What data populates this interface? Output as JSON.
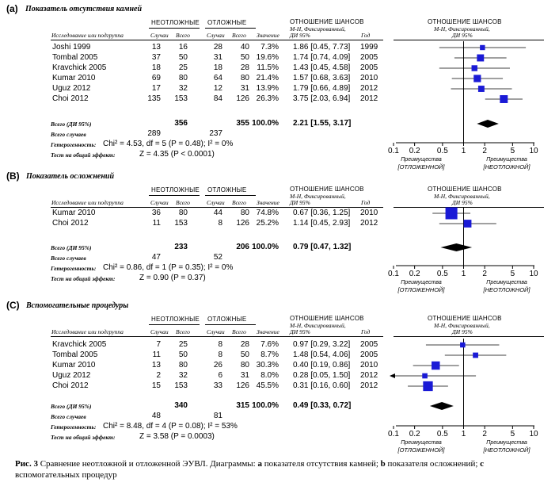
{
  "columns": {
    "study": "Исследование или подгруппа",
    "group_emerg": "НЕОТЛОЖНЫЕ",
    "group_delay": "ОТЛОЖНЫЕ",
    "events": "Случаи",
    "total": "Всего",
    "weight": "Значение",
    "or_title": "ОТНОШЕНИЕ ШАНСОВ",
    "or_sub1": "M-H, Фиксированный,",
    "or_sub2": "ДИ 95%",
    "year": "Год",
    "plot_title": "ОТНОШЕНИЕ ШАНСОВ",
    "plot_sub1": "M-H, Фиксированный,",
    "plot_sub2": "ДИ 95%",
    "favours": "Преимущества",
    "fav_left": "[ОТЛОЖЕННОЙ]",
    "fav_right": "[НЕОТЛОЖНОЙ]",
    "total_label": "Всего (ДИ 95%)",
    "events_label": "Всего случаев",
    "het_label": "Гетерогенность:",
    "test_label": "Тест на общий эффект:",
    "axis_ticks": [
      "0.1",
      "0.2",
      "0.5",
      "1",
      "2",
      "5",
      "10"
    ]
  },
  "caption": {
    "bold": "Рис. 3",
    "text1": " Сравнение неотложной и отложенной ЭУВЛ. Диаграммы: ",
    "a": "a",
    "text2": " показателя отсутствия камней; ",
    "b": "b",
    "text3": " показателя осложнений; ",
    "c": "c",
    "text4": "вспомогательных процедур"
  },
  "chart_data": [
    {
      "type": "forest",
      "panel": "(a)",
      "title": "Показатель отсутствия камней",
      "xscale": "log",
      "xlim": [
        0.1,
        10
      ],
      "rows": [
        {
          "study": "Joshi 1999",
          "e1": "13",
          "n1": "16",
          "e2": "28",
          "n2": "40",
          "weight": "7.3%",
          "or_text": "1.86 [0.45, 7.73]",
          "year": "1999",
          "or": 1.86,
          "lo": 0.45,
          "hi": 7.73,
          "w": 7.3
        },
        {
          "study": "Tombal 2005",
          "e1": "37",
          "n1": "50",
          "e2": "31",
          "n2": "50",
          "weight": "19.6%",
          "or_text": "1.74 [0.74, 4.09]",
          "year": "2005",
          "or": 1.74,
          "lo": 0.74,
          "hi": 4.09,
          "w": 19.6
        },
        {
          "study": "Kravchick 2005",
          "e1": "18",
          "n1": "25",
          "e2": "18",
          "n2": "28",
          "weight": "11.5%",
          "or_text": "1.43 [0.45, 4.58]",
          "year": "2005",
          "or": 1.43,
          "lo": 0.45,
          "hi": 4.58,
          "w": 11.5
        },
        {
          "study": "Kumar 2010",
          "e1": "69",
          "n1": "80",
          "e2": "64",
          "n2": "80",
          "weight": "21.4%",
          "or_text": "1.57 [0.68, 3.63]",
          "year": "2010",
          "or": 1.57,
          "lo": 0.68,
          "hi": 3.63,
          "w": 21.4
        },
        {
          "study": "Uguz 2012",
          "e1": "17",
          "n1": "32",
          "e2": "12",
          "n2": "31",
          "weight": "13.9%",
          "or_text": "1.79 [0.66, 4.89]",
          "year": "2012",
          "or": 1.79,
          "lo": 0.66,
          "hi": 4.89,
          "w": 13.9
        },
        {
          "study": "Choi 2012",
          "e1": "135",
          "n1": "153",
          "e2": "84",
          "n2": "126",
          "weight": "26.3%",
          "or_text": "3.75 [2.03, 6.94]",
          "year": "2012",
          "or": 3.75,
          "lo": 2.03,
          "hi": 6.94,
          "w": 26.3
        }
      ],
      "total": {
        "n1": "356",
        "n2": "355",
        "weight": "100.0%",
        "or_text": "2.21 [1.55, 3.17]",
        "or": 2.21,
        "lo": 1.55,
        "hi": 3.17
      },
      "events": {
        "e1": "289",
        "e2": "237"
      },
      "heterogeneity": "Chi² = 4.53, df = 5 (P = 0.48); I² = 0%",
      "overall": "Z = 4.35 (P < 0.0001)"
    },
    {
      "type": "forest",
      "panel": "(B)",
      "title": "Показатель осложнений",
      "xscale": "log",
      "xlim": [
        0.1,
        10
      ],
      "rows": [
        {
          "study": "Kumar 2010",
          "e1": "36",
          "n1": "80",
          "e2": "44",
          "n2": "80",
          "weight": "74.8%",
          "or_text": "0.67 [0.36, 1.25]",
          "year": "2010",
          "or": 0.67,
          "lo": 0.36,
          "hi": 1.25,
          "w": 74.8
        },
        {
          "study": "Choi 2012",
          "e1": "11",
          "n1": "153",
          "e2": "8",
          "n2": "126",
          "weight": "25.2%",
          "or_text": "1.14 [0.45, 2.93]",
          "year": "2012",
          "or": 1.14,
          "lo": 0.45,
          "hi": 2.93,
          "w": 25.2
        }
      ],
      "total": {
        "n1": "233",
        "n2": "206",
        "weight": "100.0%",
        "or_text": "0.79 [0.47, 1.32]",
        "or": 0.79,
        "lo": 0.47,
        "hi": 1.32
      },
      "events": {
        "e1": "47",
        "e2": "52"
      },
      "heterogeneity": "Chi² = 0.86, df = 1 (P = 0.35); I² = 0%",
      "overall": "Z = 0.90 (P = 0.37)"
    },
    {
      "type": "forest",
      "panel": "(C)",
      "title": "Вспомогательные процедуры",
      "xscale": "log",
      "xlim": [
        0.1,
        10
      ],
      "rows": [
        {
          "study": "Kravchick 2005",
          "e1": "7",
          "n1": "25",
          "e2": "8",
          "n2": "28",
          "weight": "7.6%",
          "or_text": "0.97 [0.29, 3.22]",
          "year": "2005",
          "or": 0.97,
          "lo": 0.29,
          "hi": 3.22,
          "w": 7.6
        },
        {
          "study": "Tombal 2005",
          "e1": "11",
          "n1": "50",
          "e2": "8",
          "n2": "50",
          "weight": "8.7%",
          "or_text": "1.48 [0.54, 4.06]",
          "year": "2005",
          "or": 1.48,
          "lo": 0.54,
          "hi": 4.06,
          "w": 8.7
        },
        {
          "study": "Kumar 2010",
          "e1": "13",
          "n1": "80",
          "e2": "26",
          "n2": "80",
          "weight": "30.3%",
          "or_text": "0.40 [0.19, 0.86]",
          "year": "2010",
          "or": 0.4,
          "lo": 0.19,
          "hi": 0.86,
          "w": 30.3
        },
        {
          "study": "Uguz 2012",
          "e1": "2",
          "n1": "32",
          "e2": "6",
          "n2": "31",
          "weight": "8.0%",
          "or_text": "0.28 [0.05, 1.50]",
          "year": "2012",
          "or": 0.28,
          "lo": 0.05,
          "hi": 1.5,
          "w": 8.0
        },
        {
          "study": "Choi 2012",
          "e1": "15",
          "n1": "153",
          "e2": "33",
          "n2": "126",
          "weight": "45.5%",
          "or_text": "0.31 [0.16, 0.60]",
          "year": "2012",
          "or": 0.31,
          "lo": 0.16,
          "hi": 0.6,
          "w": 45.5
        }
      ],
      "total": {
        "n1": "340",
        "n2": "315",
        "weight": "100.0%",
        "or_text": "0.49 [0.33, 0.72]",
        "or": 0.49,
        "lo": 0.33,
        "hi": 0.72
      },
      "events": {
        "e1": "48",
        "e2": "81"
      },
      "heterogeneity": "Chi² = 8.48, df = 4 (P = 0.08); I² = 53%",
      "overall": "Z = 3.58 (P = 0.0003)"
    }
  ]
}
